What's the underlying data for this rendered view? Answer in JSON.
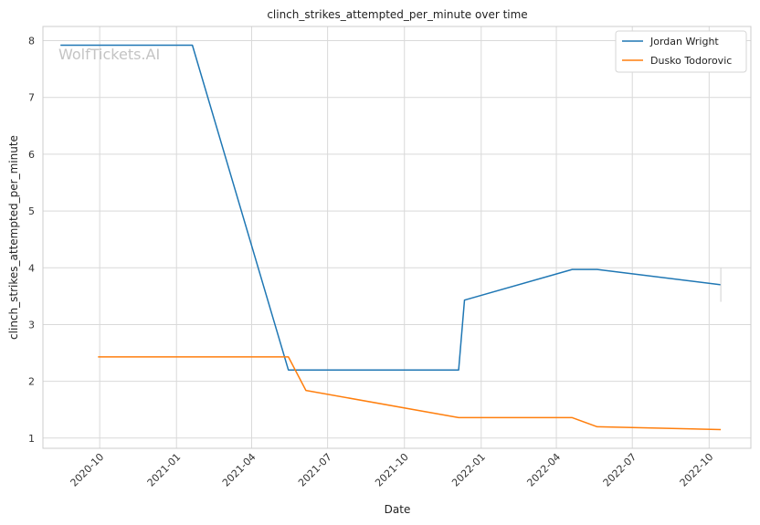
{
  "chart_data": {
    "type": "line",
    "title": "clinch_strikes_attempted_per_minute over time",
    "xlabel": "Date",
    "ylabel": "clinch_strikes_attempted_per_minute",
    "watermark": "WolfTickets.AI",
    "x_ticks": [
      "2020-10",
      "2021-01",
      "2021-04",
      "2021-07",
      "2021-10",
      "2022-01",
      "2022-04",
      "2022-07",
      "2022-10"
    ],
    "y_ticks": [
      1,
      2,
      3,
      4,
      5,
      6,
      7,
      8
    ],
    "xlim": [
      "2020-07-25",
      "2022-11-20"
    ],
    "ylim": [
      0.82,
      8.25
    ],
    "grid": true,
    "legend_position": "top-right",
    "series": [
      {
        "name": "Jordan Wright",
        "color": "#1f77b4",
        "points": [
          {
            "x": "2020-08-15",
            "y": 7.92
          },
          {
            "x": "2021-01-20",
            "y": 7.92
          },
          {
            "x": "2021-05-15",
            "y": 2.2
          },
          {
            "x": "2021-12-05",
            "y": 2.2
          },
          {
            "x": "2021-12-12",
            "y": 3.43
          },
          {
            "x": "2022-04-20",
            "y": 3.97
          },
          {
            "x": "2022-05-20",
            "y": 3.97
          },
          {
            "x": "2022-10-15",
            "y": 3.7
          }
        ]
      },
      {
        "name": "Dusko Todorovic",
        "color": "#ff7f0e",
        "points": [
          {
            "x": "2020-09-29",
            "y": 2.43
          },
          {
            "x": "2021-05-15",
            "y": 2.43
          },
          {
            "x": "2021-06-05",
            "y": 1.84
          },
          {
            "x": "2021-12-05",
            "y": 1.36
          },
          {
            "x": "2022-04-20",
            "y": 1.36
          },
          {
            "x": "2022-05-20",
            "y": 1.2
          },
          {
            "x": "2022-10-15",
            "y": 1.15
          }
        ]
      }
    ]
  }
}
